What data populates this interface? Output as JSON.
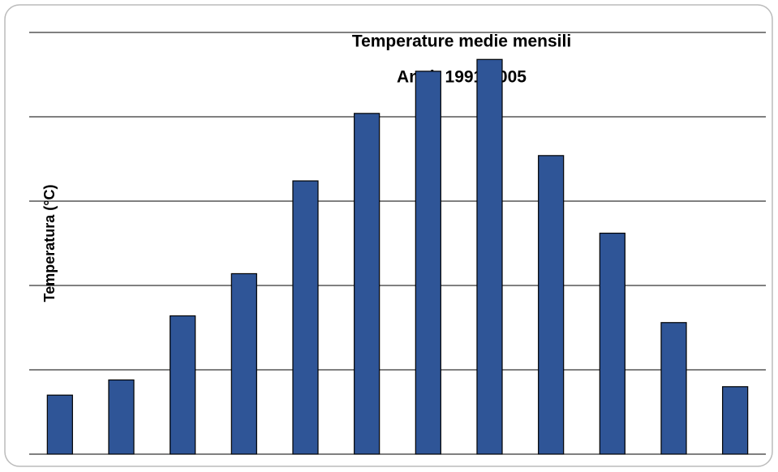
{
  "chart_data": {
    "type": "bar",
    "title": "Temperature medie mensili",
    "subtitle": "Anni: 1991-2005",
    "y_label": "Temperatura (°C)",
    "categories": [
      null,
      null,
      null,
      null,
      null,
      null,
      null,
      null,
      null,
      null,
      null,
      null
    ],
    "values": [
      3.5,
      4.4,
      8.2,
      10.7,
      16.2,
      20.2,
      22.7,
      23.4,
      17.7,
      13.1,
      7.8,
      4.0
    ],
    "color": "#2f5597",
    "ylim": [
      0,
      25
    ],
    "yticks": [
      0,
      5,
      10,
      15,
      20,
      25
    ],
    "grid": true
  }
}
